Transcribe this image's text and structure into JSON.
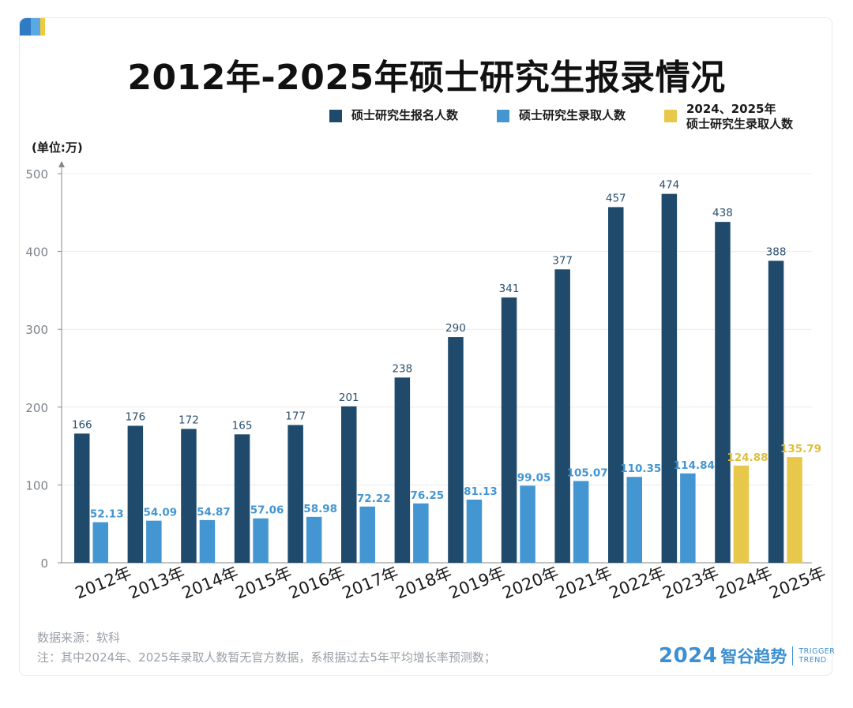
{
  "title": "2012年-2025年硕士研究生报录情况",
  "unit_label": "(单位:万)",
  "legend": [
    {
      "label": "硕士研究生报名人数",
      "color": "#1f4a6b"
    },
    {
      "label": "硕士研究生录取人数",
      "color": "#4396d2"
    },
    {
      "label": "2024、2025年\n硕士研究生录取人数",
      "color": "#e8c84a"
    }
  ],
  "notes": {
    "source": "数据来源：软科",
    "note": "注：其中2024年、2025年录取人数暂无官方数据，系根据过去5年平均增长率预测数；"
  },
  "brand": {
    "year": "2024",
    "name": "智谷趋势",
    "en_line1": "TRIGGER",
    "en_line2": "TREND"
  },
  "colors": {
    "applicants": "#1f4a6b",
    "admitted": "#4396d2",
    "admitted_projected": "#e8c84a",
    "axis_text": "#7d8389",
    "grid": "#e9ecef"
  },
  "chart_data": {
    "type": "bar",
    "categories": [
      "2012年",
      "2013年",
      "2014年",
      "2015年",
      "2016年",
      "2017年",
      "2018年",
      "2019年",
      "2020年",
      "2021年",
      "2022年",
      "2023年",
      "2024年",
      "2025年"
    ],
    "series": [
      {
        "name": "硕士研究生报名人数",
        "values": [
          166,
          176,
          172,
          165,
          177,
          201,
          238,
          290,
          341,
          377,
          457,
          474,
          438,
          388
        ],
        "labels": [
          "166",
          "176",
          "172",
          "165",
          "177",
          "201",
          "238",
          "290",
          "341",
          "377",
          "457",
          "474",
          "438",
          "388"
        ]
      },
      {
        "name": "硕士研究生录取人数",
        "values": [
          52.13,
          54.09,
          54.87,
          57.06,
          58.98,
          72.22,
          76.25,
          81.13,
          99.05,
          105.07,
          110.35,
          114.84,
          124.88,
          135.79
        ],
        "labels": [
          "52.13",
          "54.09",
          "54.87",
          "57.06",
          "58.98",
          "72.22",
          "76.25",
          "81.13",
          "99.05",
          "105.07",
          "110.35",
          "114.84",
          "124.88",
          "135.79"
        ],
        "projected": [
          false,
          false,
          false,
          false,
          false,
          false,
          false,
          false,
          false,
          false,
          false,
          false,
          true,
          true
        ]
      }
    ],
    "ylim": [
      0,
      500
    ],
    "yticks": [
      0,
      100,
      200,
      300,
      400,
      500
    ],
    "grid": true,
    "legend_position": "top-right"
  }
}
